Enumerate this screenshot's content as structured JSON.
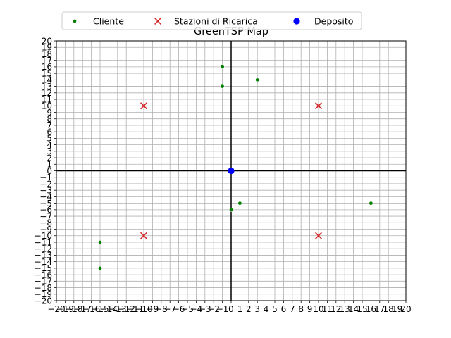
{
  "chart_data": {
    "type": "scatter",
    "title": "GreenTSP Map",
    "xlabel": "",
    "ylabel": "",
    "xlim": [
      -20,
      20
    ],
    "ylim": [
      -20,
      20
    ],
    "xticks": [
      -20,
      -19,
      -18,
      -17,
      -16,
      -15,
      -14,
      -13,
      -12,
      -11,
      -10,
      -9,
      -8,
      -7,
      -6,
      -5,
      -4,
      -3,
      -2,
      -1,
      0,
      1,
      2,
      3,
      4,
      5,
      6,
      7,
      8,
      9,
      10,
      11,
      12,
      13,
      14,
      15,
      16,
      17,
      18,
      19,
      20
    ],
    "yticks": [
      -20,
      -19,
      -18,
      -17,
      -16,
      -15,
      -14,
      -13,
      -12,
      -11,
      -10,
      -9,
      -8,
      -7,
      -6,
      -5,
      -4,
      -3,
      -2,
      -1,
      0,
      1,
      2,
      3,
      4,
      5,
      6,
      7,
      8,
      9,
      10,
      11,
      12,
      13,
      14,
      15,
      16,
      17,
      18,
      19,
      20
    ],
    "grid": true,
    "legend_position": "top-center",
    "series": [
      {
        "name": "Cliente",
        "marker": "dot",
        "color": "#008000",
        "points": [
          [
            -1,
            16
          ],
          [
            -1,
            13
          ],
          [
            3,
            14
          ],
          [
            1,
            -5
          ],
          [
            0,
            -6
          ],
          [
            16,
            -5
          ],
          [
            -15,
            -11
          ],
          [
            -15,
            -15
          ]
        ]
      },
      {
        "name": "Stazioni di Ricarica",
        "marker": "x",
        "color": "#d62728",
        "points": [
          [
            -10,
            10
          ],
          [
            10,
            10
          ],
          [
            -10,
            -10
          ],
          [
            10,
            -10
          ]
        ]
      },
      {
        "name": "Deposito",
        "marker": "circle",
        "color": "#0000ff",
        "points": [
          [
            0,
            0
          ]
        ]
      }
    ]
  }
}
